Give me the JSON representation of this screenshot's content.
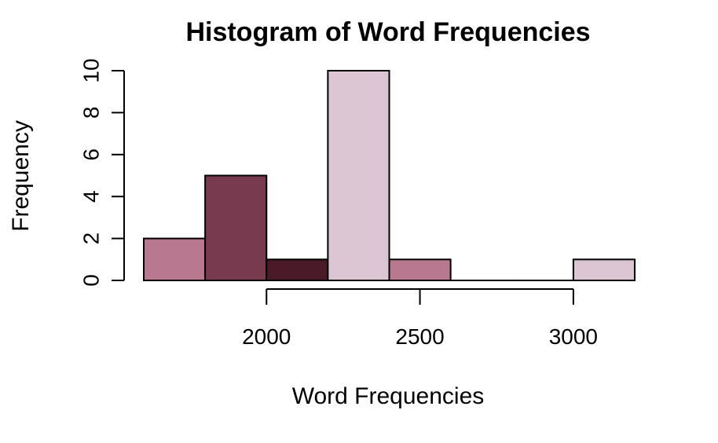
{
  "chart_data": {
    "type": "bar",
    "title": "Histogram of Word Frequencies",
    "xlabel": "Word Frequencies",
    "ylabel": "Frequency",
    "bins": [
      {
        "start": 1600,
        "end": 1800,
        "count": 2,
        "color": "#B87890"
      },
      {
        "start": 1800,
        "end": 2000,
        "count": 5,
        "color": "#773A4E"
      },
      {
        "start": 2000,
        "end": 2200,
        "count": 1,
        "color": "#4A1A28"
      },
      {
        "start": 2200,
        "end": 2400,
        "count": 10,
        "color": "#DDC6D4"
      },
      {
        "start": 2400,
        "end": 2600,
        "count": 1,
        "color": "#B87890"
      },
      {
        "start": 2600,
        "end": 2800,
        "count": 0,
        "color": "#773A4E"
      },
      {
        "start": 2800,
        "end": 3000,
        "count": 0,
        "color": "#4A1A28"
      },
      {
        "start": 3000,
        "end": 3200,
        "count": 1,
        "color": "#DDC6D4"
      }
    ],
    "x_ticks": [
      2000,
      2500,
      3000
    ],
    "x_tick_labels": [
      "2000",
      "2500",
      "3000"
    ],
    "y_ticks": [
      0,
      2,
      4,
      6,
      8,
      10
    ],
    "y_tick_labels": [
      "0",
      "2",
      "4",
      "6",
      "8",
      "10"
    ],
    "xlim": [
      1600,
      3200
    ],
    "ylim": [
      0,
      10
    ],
    "grid": false,
    "legend": "none"
  }
}
